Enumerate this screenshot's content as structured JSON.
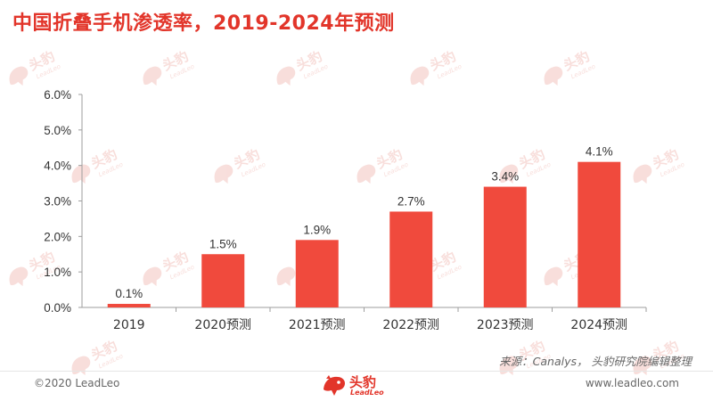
{
  "header": {
    "title": "中国折叠手机渗透率，2019-2024年预测"
  },
  "chart_data": {
    "type": "bar",
    "categories": [
      "2019",
      "2020预测",
      "2021预测",
      "2022预测",
      "2023预测",
      "2024预测"
    ],
    "values": [
      0.1,
      1.5,
      1.9,
      2.7,
      3.4,
      4.1
    ],
    "data_labels": [
      "0.1%",
      "1.5%",
      "1.9%",
      "2.7%",
      "3.4%",
      "4.1%"
    ],
    "yticks": [
      0,
      1,
      2,
      3,
      4,
      5,
      6
    ],
    "ytick_labels": [
      "0.0%",
      "1.0%",
      "2.0%",
      "3.0%",
      "4.0%",
      "5.0%",
      "6.0%"
    ],
    "ylim": [
      0,
      6
    ],
    "grid": false,
    "legend": "none",
    "bar_color": "#f04a3d"
  },
  "source_note": "来源：Canalys， 头豹研究院编辑整理",
  "footer": {
    "copyright": "©2020 LeadLeo",
    "url": "www.leadleo.com",
    "logo_cn": "头豹",
    "logo_en": "LeadLeo"
  },
  "watermark": {
    "text": "头豹",
    "sub": "LeadLeo",
    "color": "#f6d4d0"
  },
  "colors": {
    "accent": "#e2352a",
    "axis": "#9e9e9e",
    "text": "#333333"
  },
  "icons": {
    "watermark": "leopard-logo-icon",
    "footer_logo": "leopard-logo-icon"
  }
}
